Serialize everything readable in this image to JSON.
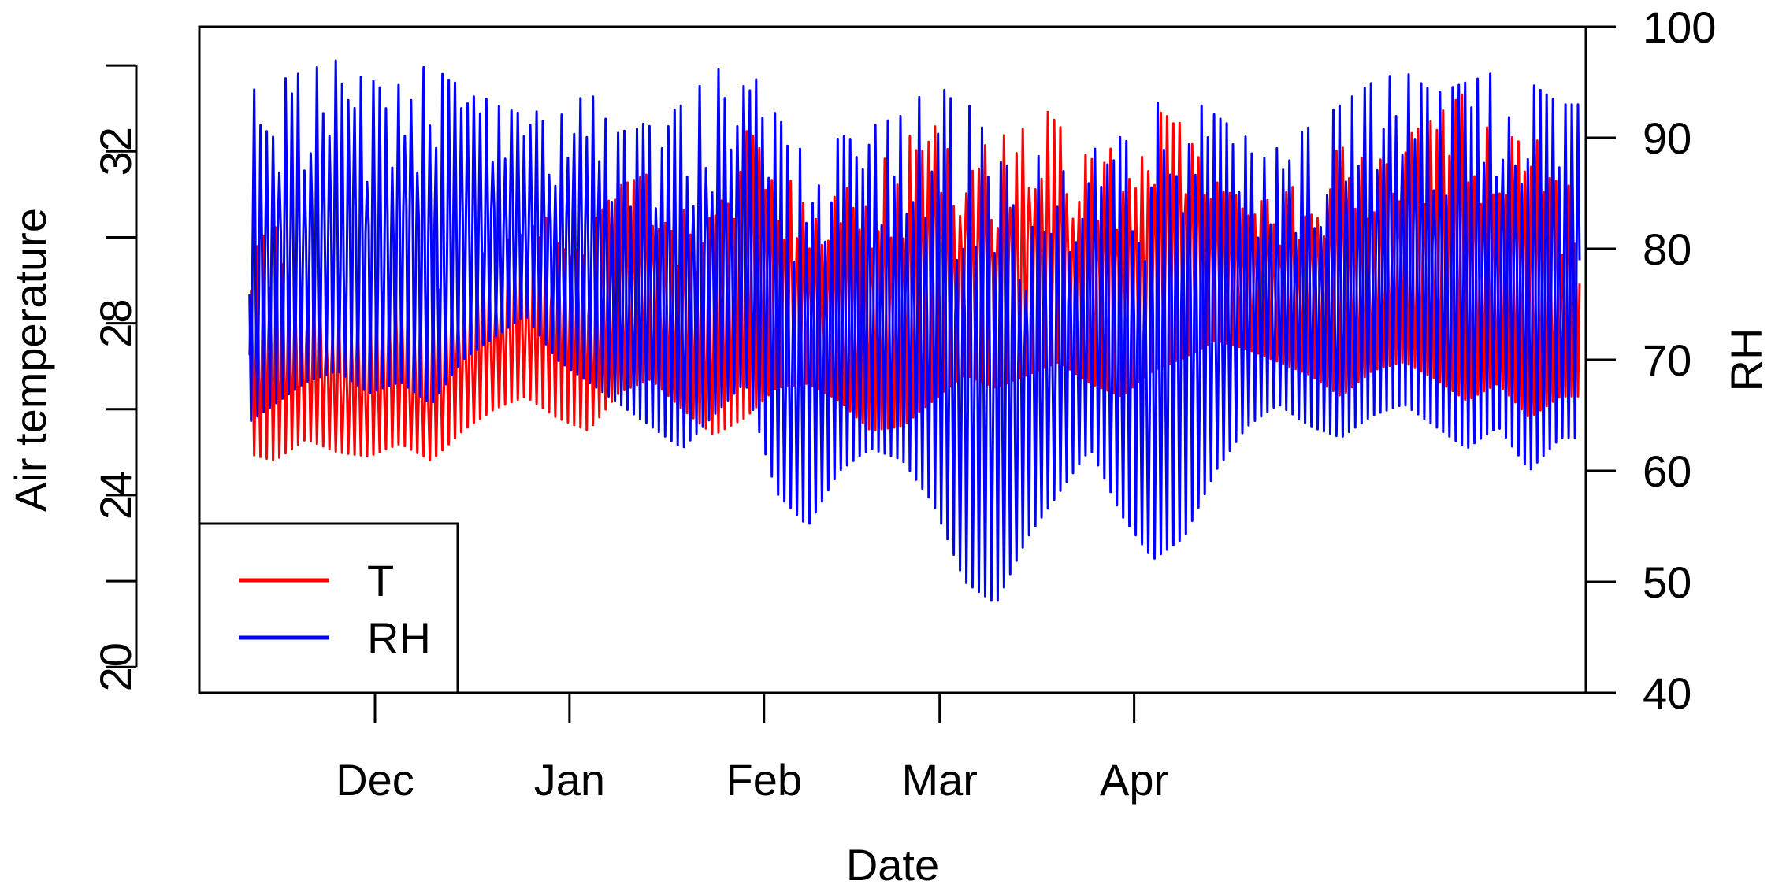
{
  "chart_data": {
    "type": "line",
    "xlabel": "Date",
    "ylabel_left": "Air temperature",
    "ylabel_right": "RH",
    "x_range": [
      "2016-11-03",
      "2017-06-12"
    ],
    "x_ticks": [
      {
        "date": "2016-12-01",
        "label": "Dec"
      },
      {
        "date": "2017-01-01",
        "label": "Jan"
      },
      {
        "date": "2017-02-01",
        "label": "Feb"
      },
      {
        "date": "2017-03-01",
        "label": "Mar"
      },
      {
        "date": "2017-04-01",
        "label": "Apr"
      }
    ],
    "y_left": {
      "range": [
        19.4,
        34.9
      ],
      "ticks": [
        20,
        24,
        28,
        32
      ],
      "minor_ticks": [
        22,
        26,
        30,
        34
      ]
    },
    "y_right": {
      "range": [
        40,
        100
      ],
      "ticks": [
        40,
        50,
        60,
        70,
        80,
        90,
        100
      ]
    },
    "legend": {
      "position": "bottom-left",
      "entries": [
        "T",
        "RH"
      ]
    },
    "colors": {
      "T": "#ff0000",
      "RH": "#0000ff"
    },
    "series": [
      {
        "name": "T",
        "axis": "left",
        "x": [
          "2016-11-10",
          "2016-11-15",
          "2016-11-20",
          "2016-11-25",
          "2016-11-30",
          "2016-12-05",
          "2016-12-10",
          "2016-12-15",
          "2016-12-20",
          "2016-12-25",
          "2016-12-30",
          "2017-01-04",
          "2017-01-09",
          "2017-01-14",
          "2017-01-19",
          "2017-01-24",
          "2017-01-29",
          "2017-02-03",
          "2017-02-08",
          "2017-02-13",
          "2017-02-18",
          "2017-02-23",
          "2017-02-28",
          "2017-03-05",
          "2017-03-10",
          "2017-03-15",
          "2017-03-20",
          "2017-03-25",
          "2017-03-30",
          "2017-04-04",
          "2017-04-09",
          "2017-04-14",
          "2017-04-19",
          "2017-04-24",
          "2017-04-29",
          "2017-05-04",
          "2017-05-09",
          "2017-05-14",
          "2017-05-19",
          "2017-05-24",
          "2017-05-29",
          "2017-06-03",
          "2017-06-08"
        ],
        "daily_min": [
          25.0,
          24.8,
          25.3,
          25.0,
          24.9,
          25.2,
          24.8,
          25.5,
          26.0,
          26.3,
          25.8,
          25.5,
          26.4,
          26.7,
          26.0,
          25.4,
          25.8,
          26.5,
          26.6,
          26.2,
          25.5,
          25.6,
          26.2,
          26.8,
          26.5,
          26.8,
          27.1,
          26.6,
          26.3,
          26.9,
          27.2,
          27.6,
          27.4,
          27.1,
          26.8,
          26.3,
          26.9,
          27.1,
          26.7,
          26.2,
          26.6,
          25.8,
          26.3
        ],
        "daily_max": [
          29.5,
          30.3,
          28.9,
          28.5,
          28.8,
          29.0,
          28.6,
          29.3,
          29.8,
          30.1,
          30.7,
          30.2,
          31.2,
          31.5,
          30.8,
          30.4,
          32.5,
          31.9,
          30.6,
          31.0,
          31.6,
          32.1,
          33.1,
          32.4,
          32.0,
          33.5,
          32.6,
          31.8,
          32.2,
          33.0,
          32.6,
          31.3,
          30.8,
          30.9,
          31.5,
          32.1,
          31.7,
          32.3,
          32.8,
          33.4,
          32.1,
          32.6,
          31.2
        ]
      },
      {
        "name": "RH",
        "axis": "right",
        "x": [
          "2016-11-10",
          "2016-11-15",
          "2016-11-20",
          "2016-11-25",
          "2016-11-30",
          "2016-12-05",
          "2016-12-10",
          "2016-12-15",
          "2016-12-20",
          "2016-12-25",
          "2016-12-30",
          "2017-01-04",
          "2017-01-09",
          "2017-01-14",
          "2017-01-19",
          "2017-01-24",
          "2017-01-29",
          "2017-02-03",
          "2017-02-08",
          "2017-02-13",
          "2017-02-18",
          "2017-02-23",
          "2017-02-28",
          "2017-03-05",
          "2017-03-10",
          "2017-03-15",
          "2017-03-20",
          "2017-03-25",
          "2017-03-30",
          "2017-04-04",
          "2017-04-09",
          "2017-04-14",
          "2017-04-19",
          "2017-04-24",
          "2017-04-29",
          "2017-05-04",
          "2017-05-09",
          "2017-05-14",
          "2017-05-19",
          "2017-05-24",
          "2017-05-29",
          "2017-06-03",
          "2017-06-08"
        ],
        "daily_min": [
          64,
          66,
          68,
          69,
          67,
          68,
          66,
          70,
          72,
          74,
          70,
          68,
          66,
          64,
          62,
          65,
          68,
          58,
          55,
          60,
          62,
          61,
          57,
          50,
          48,
          54,
          58,
          62,
          56,
          52,
          54,
          60,
          64,
          66,
          64,
          63,
          65,
          66,
          64,
          62,
          64,
          60,
          63
        ],
        "daily_max": [
          94,
          95,
          96,
          97,
          95,
          96,
          97,
          95,
          93,
          92,
          93,
          94,
          92,
          91,
          93,
          96,
          97,
          92,
          88,
          90,
          91,
          92,
          95,
          93,
          92,
          88,
          89,
          91,
          90,
          93,
          94,
          92,
          90,
          89,
          91,
          93,
          95,
          96,
          94,
          95,
          96,
          95,
          93
        ]
      }
    ]
  }
}
